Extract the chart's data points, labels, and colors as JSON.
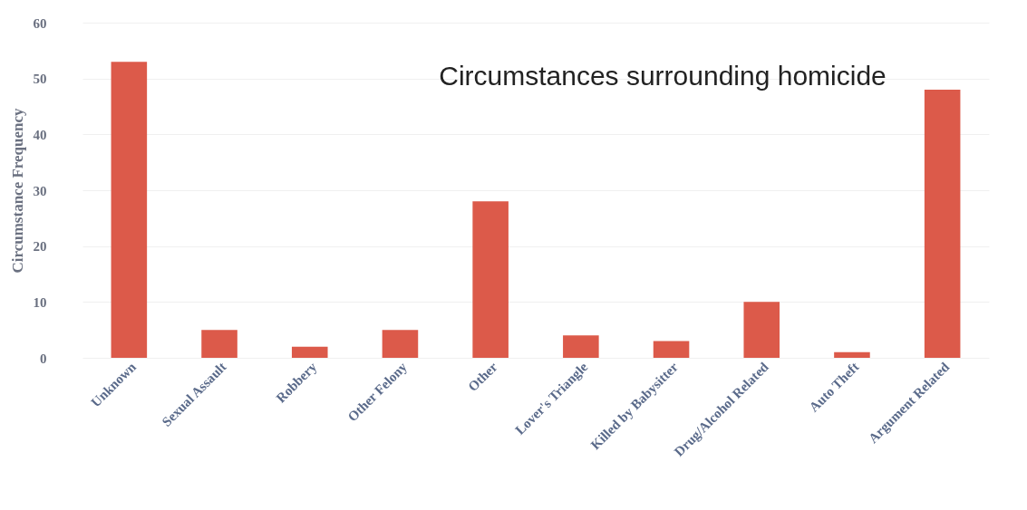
{
  "chart_data": {
    "type": "bar",
    "title": "Circumstances surrounding homicide",
    "ylabel": "Circumstance Frequency",
    "categories": [
      "Unknown",
      "Sexual Assault",
      "Robbery",
      "Other Felony",
      "Other",
      "Lover's Triangle",
      "Killed by Babysitter",
      "Drug/Alcohol Related",
      "Auto Theft",
      "Argument Related"
    ],
    "values": [
      53,
      5,
      2,
      5,
      28,
      4,
      3,
      10,
      1,
      48
    ],
    "color": "#dc5a4a",
    "ylim": [
      0,
      60
    ],
    "yticks": [
      0,
      10,
      20,
      30,
      40,
      50,
      60
    ],
    "grid": "y"
  }
}
